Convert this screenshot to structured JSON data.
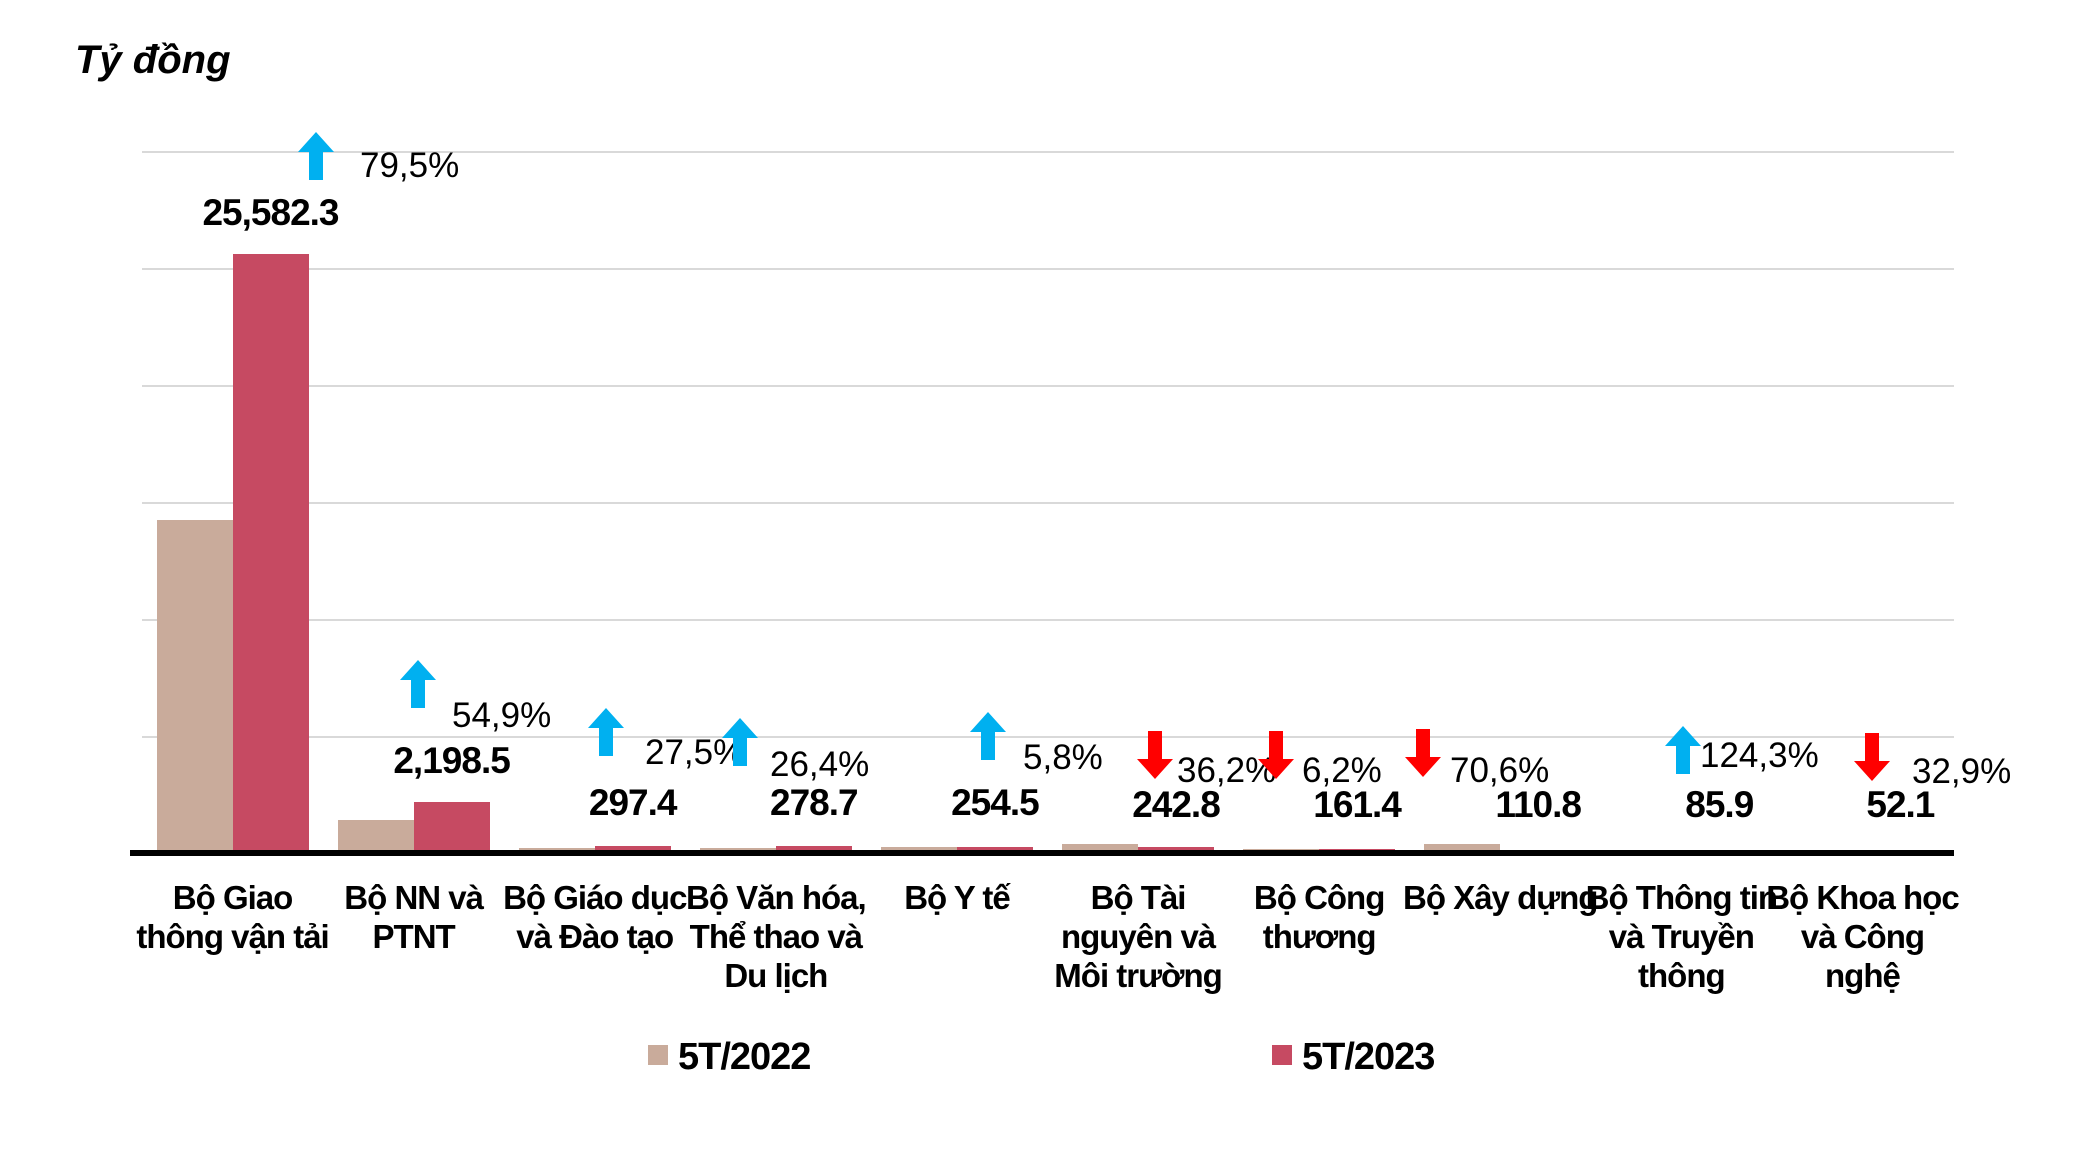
{
  "chart_data": {
    "type": "bar",
    "title": "",
    "ylabel": "Tỷ đồng",
    "xlabel": "",
    "ylim": [
      0,
      30000
    ],
    "gridline_step": 5000,
    "grid": true,
    "legend_position": "bottom",
    "categories": [
      "Bộ Giao thông vận tải",
      "Bộ NN và PTNT",
      "Bộ Giáo dục và Đào tạo",
      "Bộ Văn hóa, Thể thao và Du lịch",
      "Bộ Y tế",
      "Bộ Tài nguyên và Môi trường",
      "Bộ Công thương",
      "Bộ Xây dựng",
      "Bộ Thông tin và Truyền thông",
      "Bộ Khoa học và Công nghệ"
    ],
    "category_lines": [
      [
        "Bộ Giao",
        "thông vận tải"
      ],
      [
        "Bộ NN và",
        "PTNT"
      ],
      [
        "Bộ Giáo dục",
        "và Đào tạo"
      ],
      [
        "Bộ Văn hóa,",
        "Thể thao và",
        "Du lịch"
      ],
      [
        "Bộ Y tế"
      ],
      [
        "Bộ Tài",
        "nguyên và",
        "Môi trường"
      ],
      [
        "Bộ Công",
        "thương"
      ],
      [
        "Bộ Xây dựng"
      ],
      [
        "Bộ Thông tin",
        "và Truyền",
        "thông"
      ],
      [
        "Bộ Khoa học",
        "và Công",
        "nghệ"
      ]
    ],
    "series": [
      {
        "name": "5T/2022",
        "values_estimated_from_bars": true,
        "values": [
          14252,
          1419,
          233,
          220,
          241,
          381,
          172,
          377,
          38,
          78
        ]
      },
      {
        "name": "5T/2023",
        "values": [
          25582.3,
          2198.5,
          297.4,
          278.7,
          254.5,
          242.8,
          161.4,
          110.8,
          85.9,
          52.1
        ]
      }
    ],
    "value_labels_2023": [
      "25,582.3",
      "2,198.5",
      "297.4",
      "278.7",
      "254.5",
      "242.8",
      "161.4",
      "110.8",
      "85.9",
      "52.1"
    ],
    "pct_change": [
      {
        "text": "79,5%",
        "direction": "up"
      },
      {
        "text": "54,9%",
        "direction": "up"
      },
      {
        "text": "27,5%",
        "direction": "up"
      },
      {
        "text": "26,4%",
        "direction": "up"
      },
      {
        "text": "5,8%",
        "direction": "up"
      },
      {
        "text": "36,2%",
        "direction": "down"
      },
      {
        "text": "6,2%",
        "direction": "down"
      },
      {
        "text": "70,6%",
        "direction": "down"
      },
      {
        "text": "124,3%",
        "direction": "up"
      },
      {
        "text": "32,9%",
        "direction": "down"
      }
    ]
  },
  "legend": {
    "items": [
      {
        "label": "5T/2022",
        "color": "#C9AB9B"
      },
      {
        "label": "5T/2023",
        "color": "#C64A62"
      }
    ]
  },
  "colors": {
    "bar_2022": "#C9AB9B",
    "bar_2023": "#C64A62",
    "arrow_up": "#00B0F0",
    "arrow_down": "#FF0000",
    "gridline": "#D9D9D9",
    "axis": "#000000"
  }
}
